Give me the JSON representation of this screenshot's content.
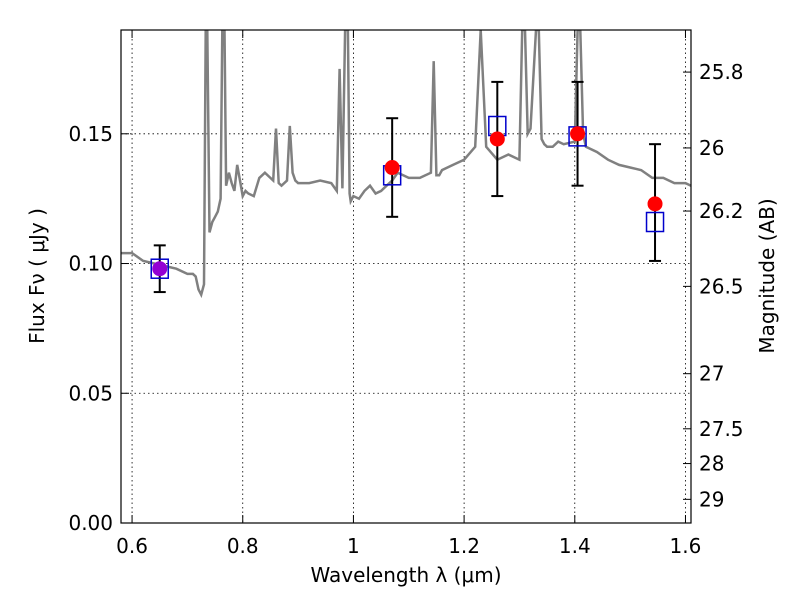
{
  "chart_data": {
    "type": "scatter",
    "xlabel": "Wavelength  λ (μm)",
    "ylabel": "Flux  Fν  ( μJy )",
    "ylabel_right": "Magnitude (AB)",
    "xlim": [
      0.58,
      1.61
    ],
    "ylim": [
      0,
      0.19
    ],
    "grid": true,
    "x_ticks": [
      0.6,
      0.8,
      1.0,
      1.2,
      1.4,
      1.6
    ],
    "x_tick_labels": [
      "0.6",
      "0.8",
      "1",
      "1.2",
      "1.4",
      "1.6"
    ],
    "y_ticks": [
      0.0,
      0.05,
      0.1,
      0.15
    ],
    "y_tick_labels": [
      "0.00",
      "0.05",
      "0.10",
      "0.15"
    ],
    "mag_ticks": [
      25.8,
      26,
      26.2,
      26.5,
      27,
      27.5,
      28,
      29
    ],
    "mag_tick_labels": [
      "25.8",
      "26",
      "26.2",
      "26.5",
      "27",
      "27.5",
      "28",
      "29"
    ],
    "series": [
      {
        "kind": "model_spectrum",
        "color": "#808080",
        "x": [
          0.58,
          0.6,
          0.62,
          0.64,
          0.66,
          0.68,
          0.7,
          0.71,
          0.715,
          0.72,
          0.725,
          0.73,
          0.733,
          0.736,
          0.74,
          0.745,
          0.75,
          0.755,
          0.76,
          0.763,
          0.767,
          0.77,
          0.775,
          0.78,
          0.785,
          0.79,
          0.795,
          0.8,
          0.805,
          0.81,
          0.82,
          0.83,
          0.84,
          0.85,
          0.855,
          0.86,
          0.865,
          0.87,
          0.88,
          0.885,
          0.89,
          0.895,
          0.9,
          0.92,
          0.94,
          0.96,
          0.97,
          0.975,
          0.98,
          0.985,
          0.99,
          0.993,
          0.995,
          1.0,
          1.01,
          1.02,
          1.03,
          1.04,
          1.05,
          1.06,
          1.07,
          1.08,
          1.09,
          1.1,
          1.12,
          1.14,
          1.145,
          1.15,
          1.155,
          1.16,
          1.18,
          1.2,
          1.22,
          1.23,
          1.24,
          1.26,
          1.28,
          1.3,
          1.305,
          1.31,
          1.315,
          1.32,
          1.33,
          1.335,
          1.34,
          1.345,
          1.35,
          1.36,
          1.37,
          1.38,
          1.4,
          1.405,
          1.41,
          1.415,
          1.42,
          1.44,
          1.46,
          1.48,
          1.5,
          1.52,
          1.54,
          1.56,
          1.58,
          1.6,
          1.61
        ],
        "y": [
          0.104,
          0.104,
          0.101,
          0.1,
          0.099,
          0.098,
          0.096,
          0.096,
          0.095,
          0.09,
          0.088,
          0.092,
          0.19,
          0.19,
          0.112,
          0.116,
          0.118,
          0.12,
          0.125,
          0.19,
          0.19,
          0.13,
          0.135,
          0.131,
          0.128,
          0.138,
          0.132,
          0.126,
          0.128,
          0.127,
          0.126,
          0.133,
          0.135,
          0.133,
          0.132,
          0.152,
          0.131,
          0.13,
          0.132,
          0.153,
          0.135,
          0.132,
          0.131,
          0.131,
          0.132,
          0.131,
          0.128,
          0.175,
          0.129,
          0.19,
          0.19,
          0.127,
          0.124,
          0.126,
          0.125,
          0.128,
          0.13,
          0.127,
          0.128,
          0.13,
          0.132,
          0.135,
          0.134,
          0.133,
          0.133,
          0.135,
          0.178,
          0.134,
          0.134,
          0.136,
          0.138,
          0.14,
          0.145,
          0.19,
          0.145,
          0.14,
          0.142,
          0.14,
          0.19,
          0.19,
          0.15,
          0.152,
          0.19,
          0.19,
          0.148,
          0.146,
          0.145,
          0.145,
          0.147,
          0.146,
          0.147,
          0.19,
          0.19,
          0.15,
          0.145,
          0.143,
          0.14,
          0.138,
          0.137,
          0.136,
          0.133,
          0.133,
          0.131,
          0.131,
          0.13
        ]
      },
      {
        "kind": "model_photometry",
        "marker": "open-square",
        "color": "#0000cc",
        "x": [
          0.65,
          1.07,
          1.26,
          1.405,
          1.545
        ],
        "y": [
          0.098,
          0.134,
          0.153,
          0.149,
          0.116
        ]
      },
      {
        "kind": "observed_photometry",
        "marker": "filled-circle",
        "color": "#ff0000",
        "first_point_color": "#9400d3",
        "x": [
          0.65,
          1.07,
          1.26,
          1.405,
          1.545
        ],
        "y": [
          0.098,
          0.137,
          0.148,
          0.15,
          0.123
        ],
        "yerr_low": [
          0.009,
          0.019,
          0.022,
          0.02,
          0.022
        ],
        "yerr_high": [
          0.009,
          0.019,
          0.022,
          0.02,
          0.023
        ]
      }
    ]
  }
}
